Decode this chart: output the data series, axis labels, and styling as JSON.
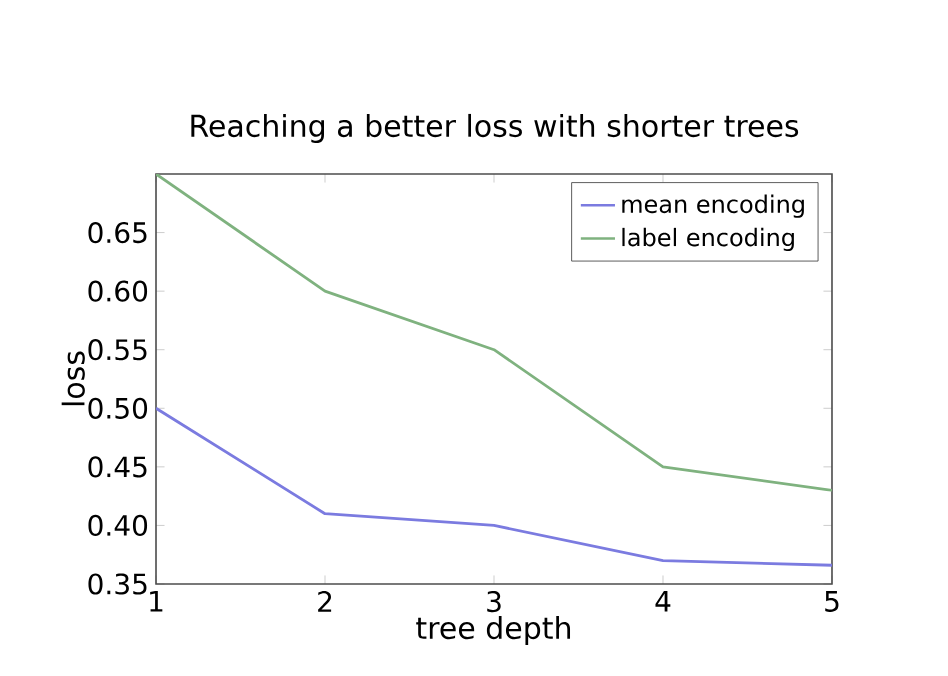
{
  "chart_data": {
    "type": "line",
    "title": "Reaching a better loss with shorter trees",
    "xlabel": "tree depth",
    "ylabel": "loss",
    "x": [
      1,
      2,
      3,
      4,
      5
    ],
    "series": [
      {
        "name": "mean encoding",
        "color": "#7b7be0",
        "values": [
          0.5,
          0.41,
          0.4,
          0.37,
          0.366
        ]
      },
      {
        "name": "label encoding",
        "color": "#7fb27f",
        "values": [
          0.7,
          0.6,
          0.55,
          0.45,
          0.43
        ]
      }
    ],
    "xlim": [
      1,
      5
    ],
    "ylim": [
      0.35,
      0.7
    ],
    "xticks": [
      1,
      2,
      3,
      4,
      5
    ],
    "yticks": [
      0.35,
      {
        "value": 0.4,
        "label": "0.40"
      },
      0.45,
      {
        "value": 0.5,
        "label": "0.50"
      },
      0.55,
      {
        "value": 0.6,
        "label": "0.60"
      },
      0.65
    ],
    "legend": "top right",
    "grid": false,
    "line_style": "solid",
    "marker": "none"
  }
}
